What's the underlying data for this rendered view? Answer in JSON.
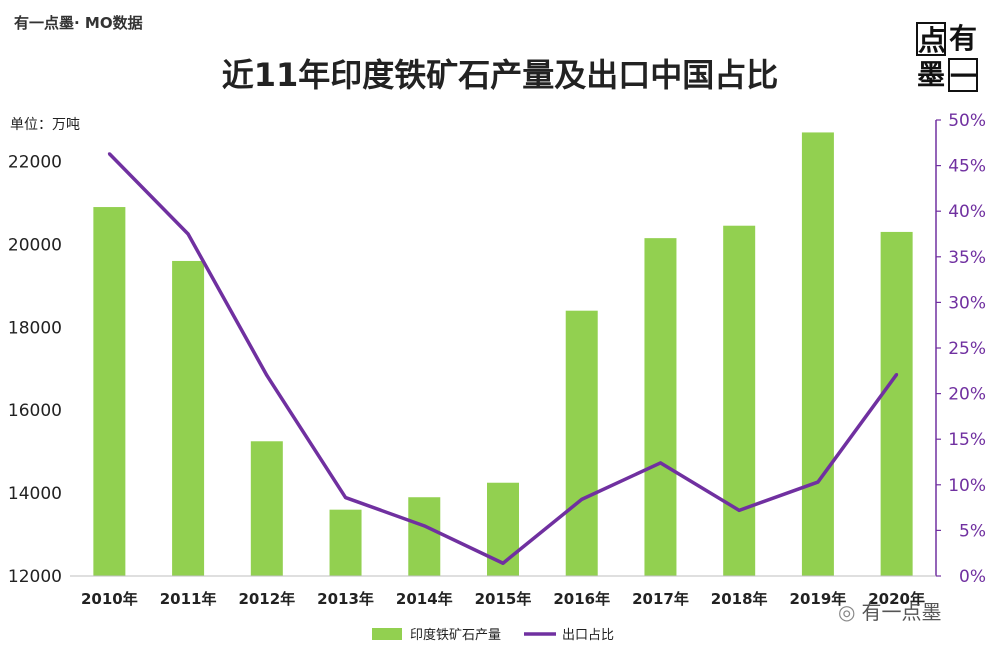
{
  "source_label": "有一点墨· MO数据",
  "logo": {
    "chars": [
      "点",
      "有",
      "墨",
      "一"
    ]
  },
  "watermark": "有一点墨",
  "chart_data": {
    "type": "bar",
    "title": "近11年印度铁矿石产量及出口中国占比",
    "unit_label": "单位：万吨",
    "categories": [
      "2010年",
      "2011年",
      "2012年",
      "2013年",
      "2014年",
      "2015年",
      "2016年",
      "2017年",
      "2018年",
      "2019年",
      "2020年"
    ],
    "series": [
      {
        "name": "印度铁矿石产量",
        "type": "bar",
        "axis": "left",
        "color": "#92d050",
        "values": [
          20900,
          19600,
          15250,
          13600,
          13900,
          14250,
          18400,
          20150,
          20450,
          22700,
          20300
        ]
      },
      {
        "name": "出口占比",
        "type": "line",
        "axis": "right",
        "color": "#7030a0",
        "values": [
          46.3,
          37.5,
          22.0,
          8.6,
          5.5,
          1.4,
          8.4,
          12.4,
          7.2,
          10.3,
          22.1
        ]
      }
    ],
    "y_left": {
      "min": 12000,
      "max": 22000,
      "ticks": [
        12000,
        14000,
        16000,
        18000,
        20000,
        22000
      ]
    },
    "y_right": {
      "min": 0,
      "max": 50,
      "ticks": [
        "0%",
        "5%",
        "10%",
        "15%",
        "20%",
        "25%",
        "30%",
        "35%",
        "40%",
        "45%",
        "50%"
      ]
    },
    "legend_position": "bottom",
    "grid": false
  }
}
